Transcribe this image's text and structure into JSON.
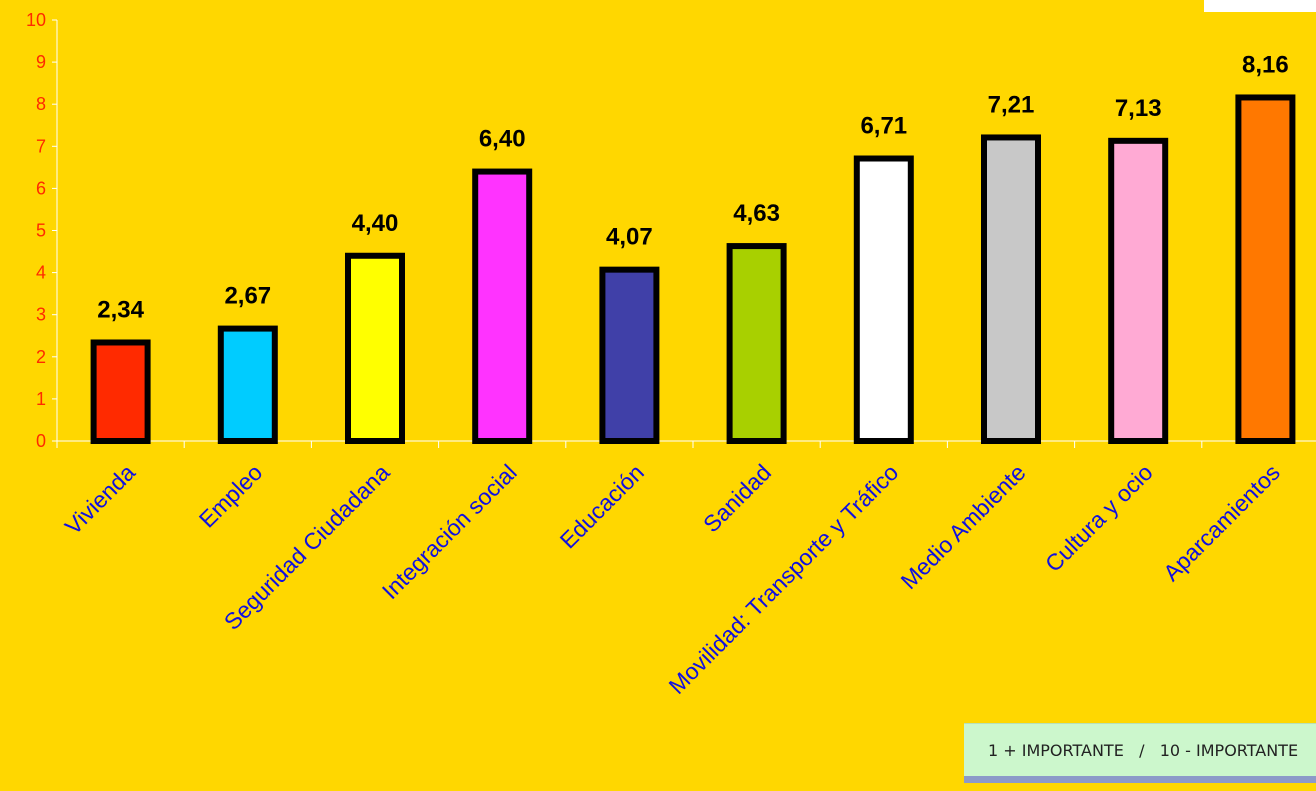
{
  "chart_data": {
    "type": "bar",
    "categories": [
      "Vivienda",
      "Empleo",
      "Seguridad Ciudadana",
      "Integración social",
      "Educación",
      "Sanidad",
      "Movilidad: Transporte y Tráfico",
      "Medio Ambiente",
      "Cultura y ocio",
      "Aparcamientos"
    ],
    "values": [
      2.34,
      2.67,
      4.4,
      6.4,
      4.07,
      4.63,
      6.71,
      7.21,
      7.13,
      8.16
    ],
    "value_labels": [
      "2,34",
      "2,67",
      "4,40",
      "6,40",
      "4,07",
      "4,63",
      "6,71",
      "7,21",
      "7,13",
      "8,16"
    ],
    "bar_colors": [
      "#FF2A00",
      "#00CCFF",
      "#FFFF00",
      "#FF33FF",
      "#4040A8",
      "#A8D000",
      "#FFFFFF",
      "#C8C8C8",
      "#FFAAD4",
      "#FF7800"
    ],
    "yticks": [
      "0",
      "1",
      "2",
      "3",
      "4",
      "5",
      "6",
      "7",
      "8",
      "9",
      "10"
    ],
    "ylim": [
      0,
      10
    ],
    "grid": false,
    "bar_border": "#000000",
    "ytick_color": "#FF2A00",
    "xtick_color": "#1010E0",
    "axis_color": "#FFFFFF"
  },
  "legend_note": "1 + IMPORTANTE   /   10 - IMPORTANTE",
  "corner_logo": "logo"
}
